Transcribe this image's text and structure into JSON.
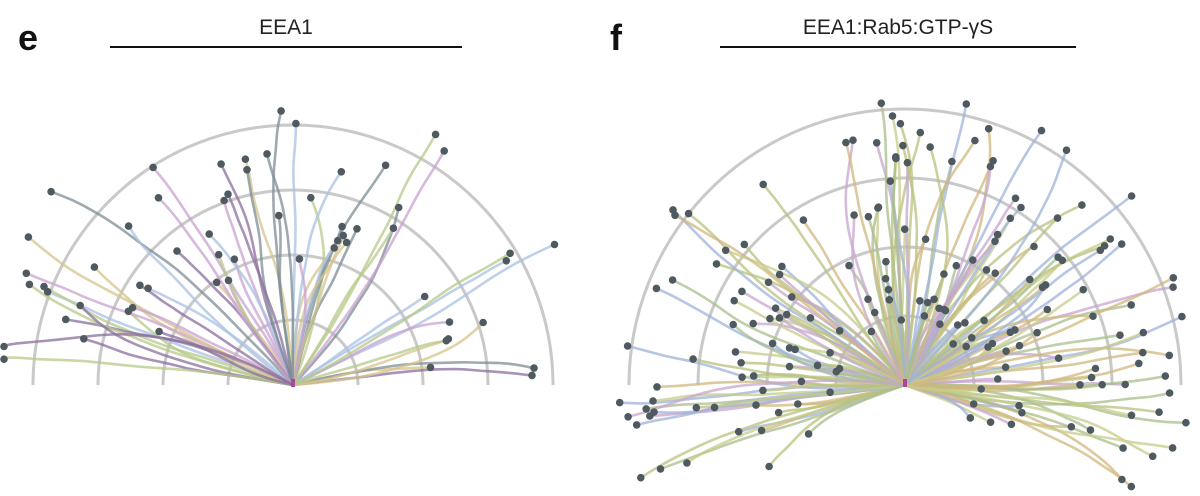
{
  "panels": [
    {
      "letter": "e",
      "title": "EEA1"
    },
    {
      "letter": "f",
      "title": "EEA1:Rab5:GTP-γS"
    }
  ],
  "chart_data": [
    {
      "type": "scatter",
      "panel": "e",
      "title": "EEA1",
      "xlabel": "",
      "ylabel": "",
      "grid": "concentric semicircles",
      "ring_count": 4,
      "trajectory_count": 60,
      "trajectory_colors": [
        "#a9c1e3",
        "#d6c48c",
        "#c9a2d2",
        "#b7c98a",
        "#7e8d96",
        "#8b6f9e"
      ],
      "endpoint_color": "#4f5a60",
      "origin_color": "#b04890"
    },
    {
      "type": "scatter",
      "panel": "f",
      "title": "EEA1:Rab5:GTP-γS",
      "xlabel": "",
      "ylabel": "",
      "grid": "concentric semicircles",
      "ring_count": 4,
      "trajectory_count": 180,
      "trajectory_colors": [
        "#b9c27e",
        "#a8be8c",
        "#d2b77e",
        "#9fb3d9",
        "#c6cc8a",
        "#c7a6cf"
      ],
      "endpoint_color": "#4f5a60",
      "origin_color": "#b04890"
    }
  ]
}
